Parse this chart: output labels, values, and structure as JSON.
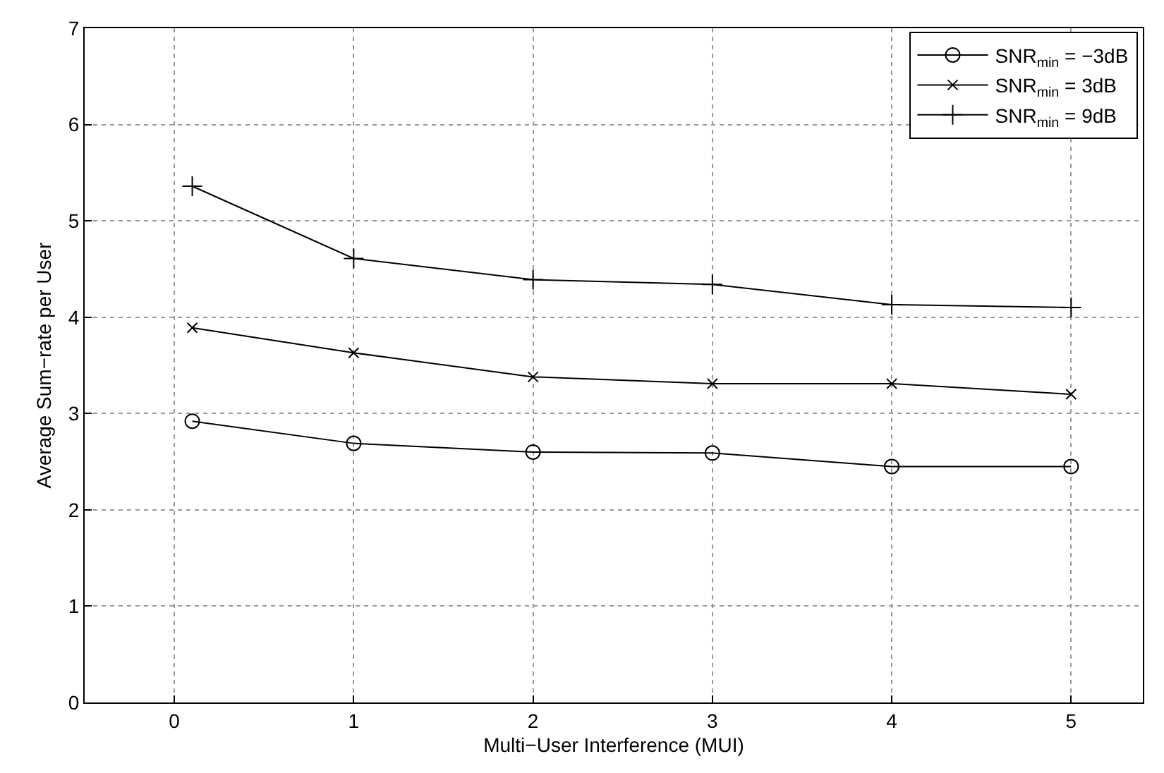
{
  "chart_data": {
    "type": "line",
    "xlabel": "Multi−User Interference (MUI)",
    "ylabel": "Average Sum−rate per User",
    "x": [
      0.1,
      1,
      2,
      3,
      4,
      5
    ],
    "series": [
      {
        "name": "SNR$_{min}$ = −3dB",
        "color": "#000000",
        "marker": "circle",
        "values": [
          2.92,
          2.69,
          2.6,
          2.59,
          2.45,
          2.45
        ]
      },
      {
        "name": "SNR$_{min}$ = 3dB",
        "color": "#000000",
        "marker": "cross",
        "values": [
          3.89,
          3.63,
          3.38,
          3.31,
          3.31,
          3.2
        ]
      },
      {
        "name": "SNR$_{min}$ = 9dB",
        "color": "#000000",
        "marker": "plus",
        "values": [
          5.36,
          4.61,
          4.39,
          4.34,
          4.13,
          4.1
        ]
      }
    ],
    "xlim": [
      -0.5,
      5.4
    ],
    "ylim": [
      0,
      7
    ],
    "xticks": [
      0,
      1,
      2,
      3,
      4,
      5
    ],
    "yticks": [
      0,
      1,
      2,
      3,
      4,
      5,
      6,
      7
    ],
    "grid": true,
    "legend": "top right",
    "line_style": "solid"
  }
}
